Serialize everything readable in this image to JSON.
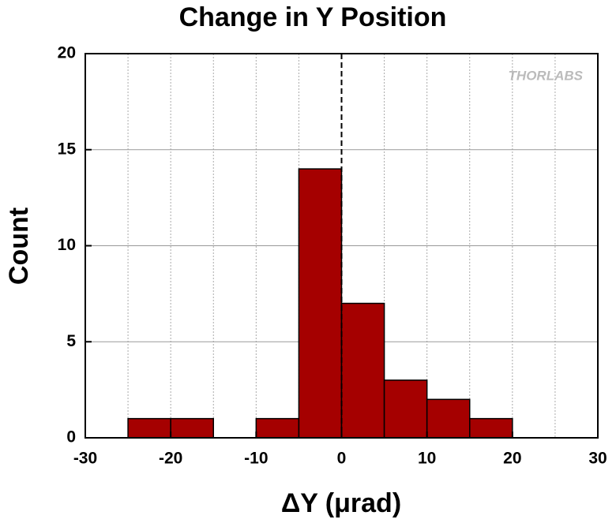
{
  "chart_data": {
    "type": "histogram",
    "title": "Change in Y Position",
    "x_label": "ΔY (μrad)",
    "y_label": "Count",
    "watermark": "THORLABS",
    "bins": [
      -25,
      -20,
      -15,
      -10,
      -5,
      0,
      5,
      10,
      15,
      20
    ],
    "values": [
      1,
      1,
      0,
      1,
      14,
      7,
      3,
      2,
      1
    ],
    "color": "#a50000",
    "xlim": [
      -30,
      30
    ],
    "xticks": [
      -30,
      -20,
      -10,
      0,
      10,
      20,
      30
    ],
    "xgrid": [
      -25,
      -20,
      -15,
      -10,
      -5,
      5,
      10,
      15,
      20,
      25
    ],
    "ylim": [
      0,
      20
    ],
    "yticks": [
      0,
      5,
      10,
      15,
      20
    ],
    "reference_line_x": 0,
    "grid": true
  }
}
